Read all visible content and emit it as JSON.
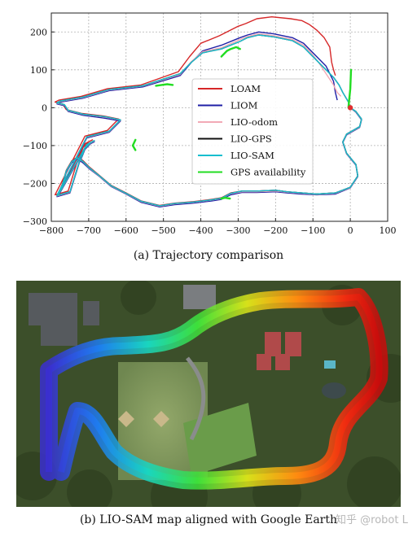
{
  "figure_a": {
    "caption": "(a) Trajectory comparison",
    "chart_data": {
      "type": "line",
      "title": "",
      "xlabel": "",
      "ylabel": "",
      "xlim": [
        -800,
        100
      ],
      "ylim": [
        -300,
        250
      ],
      "xticks": [
        -800,
        -700,
        -600,
        -500,
        -400,
        -300,
        -200,
        -100,
        0,
        100
      ],
      "yticks": [
        -300,
        -200,
        -100,
        0,
        100,
        200
      ],
      "grid": true,
      "legend_position": "center",
      "series": [
        {
          "name": "LOAM",
          "color": "#d62728",
          "x": [
            0,
            15,
            30,
            25,
            -10,
            -20,
            -10,
            15,
            20,
            0,
            -40,
            -90,
            -130,
            -170,
            -200,
            -250,
            -290,
            -320,
            -345,
            -370,
            -420,
            -470,
            -510,
            -560,
            -600,
            -640,
            -670,
            -700,
            -715,
            -730,
            -745,
            -760,
            -770,
            -780,
            -710,
            -690,
            -700,
            -715,
            -725,
            -730,
            -755,
            -790,
            -710,
            -650,
            -620,
            -660,
            -720,
            -760,
            -770,
            -790,
            -780,
            -720,
            -650,
            -560,
            -460,
            -430,
            -400,
            -350,
            -300,
            -280,
            -250,
            -210,
            -160,
            -130,
            -110,
            -90,
            -70,
            -55,
            -50,
            -45,
            -40
          ],
          "y": [
            0,
            -10,
            -30,
            -50,
            -70,
            -90,
            -120,
            -150,
            -180,
            -210,
            -225,
            -228,
            -225,
            -222,
            -218,
            -220,
            -220,
            -225,
            -238,
            -242,
            -248,
            -252,
            -258,
            -246,
            -225,
            -205,
            -180,
            -155,
            -140,
            -130,
            -140,
            -165,
            -200,
            -225,
            -95,
            -85,
            -90,
            -105,
            -130,
            -140,
            -220,
            -230,
            -75,
            -60,
            -30,
            -22,
            -15,
            -5,
            10,
            15,
            20,
            30,
            50,
            60,
            95,
            135,
            170,
            190,
            215,
            222,
            235,
            240,
            235,
            230,
            220,
            205,
            185,
            160,
            120,
            100,
            85
          ]
        },
        {
          "name": "LIOM",
          "color": "#1f1fa6",
          "x": [
            0,
            15,
            30,
            25,
            -10,
            -20,
            -10,
            15,
            20,
            0,
            -40,
            -90,
            -130,
            -170,
            -200,
            -250,
            -290,
            -320,
            -345,
            -370,
            -420,
            -470,
            -510,
            -560,
            -600,
            -640,
            -670,
            -700,
            -715,
            -730,
            -745,
            -760,
            -770,
            -780,
            -705,
            -685,
            -695,
            -710,
            -720,
            -725,
            -750,
            -785,
            -705,
            -645,
            -615,
            -655,
            -715,
            -755,
            -765,
            -785,
            -775,
            -715,
            -645,
            -555,
            -455,
            -425,
            -395,
            -345,
            -295,
            -275,
            -245,
            -205,
            -155,
            -125,
            -105,
            -85,
            -65,
            -45,
            -40,
            -35
          ],
          "y": [
            0,
            -12,
            -32,
            -52,
            -72,
            -92,
            -122,
            -152,
            -182,
            -212,
            -228,
            -230,
            -228,
            -225,
            -222,
            -224,
            -224,
            -230,
            -242,
            -246,
            -252,
            -256,
            -262,
            -250,
            -228,
            -208,
            -183,
            -160,
            -146,
            -135,
            -145,
            -170,
            -205,
            -230,
            -100,
            -90,
            -95,
            -110,
            -135,
            -145,
            -225,
            -235,
            -80,
            -65,
            -35,
            -28,
            -20,
            -10,
            5,
            10,
            15,
            25,
            45,
            55,
            85,
            120,
            150,
            165,
            185,
            192,
            200,
            195,
            185,
            170,
            150,
            130,
            110,
            70,
            40,
            20
          ]
        },
        {
          "name": "LIO-odom",
          "color": "#f2a9b6",
          "x": [
            0,
            15,
            30,
            25,
            -10,
            -20,
            -10,
            15,
            20,
            0,
            -40,
            -90,
            -130,
            -170,
            -200,
            -250,
            -290,
            -320,
            -345,
            -370,
            -420,
            -470,
            -510,
            -560,
            -600,
            -640,
            -670,
            -700,
            -715,
            -730,
            -745,
            -760,
            -770,
            -780,
            -705,
            -685,
            -695,
            -710,
            -720,
            -725,
            -750,
            -785,
            -705,
            -645,
            -615,
            -655,
            -715,
            -755,
            -765,
            -785,
            -775,
            -715,
            -645,
            -555,
            -455,
            -425,
            -395,
            -345,
            -295,
            -275,
            -245,
            -205,
            -155,
            -125,
            -105,
            -85,
            -65,
            -45,
            -35,
            -25
          ],
          "y": [
            0,
            -11,
            -31,
            -51,
            -71,
            -91,
            -121,
            -151,
            -181,
            -211,
            -226,
            -229,
            -226,
            -223,
            -220,
            -222,
            -222,
            -227,
            -240,
            -244,
            -250,
            -254,
            -260,
            -248,
            -227,
            -207,
            -182,
            -158,
            -143,
            -133,
            -143,
            -168,
            -203,
            -228,
            -98,
            -88,
            -93,
            -108,
            -133,
            -143,
            -223,
            -233,
            -78,
            -63,
            -33,
            -25,
            -18,
            -8,
            7,
            12,
            17,
            27,
            47,
            57,
            88,
            122,
            148,
            158,
            180,
            188,
            195,
            190,
            180,
            165,
            145,
            120,
            90,
            60,
            40,
            30
          ]
        },
        {
          "name": "LIO-GPS",
          "color": "#111111",
          "x": [
            0,
            15,
            30,
            25,
            -10,
            -20,
            -10,
            15,
            20,
            0,
            -40,
            -90,
            -130,
            -170,
            -200,
            -250,
            -290,
            -320,
            -345,
            -370,
            -420,
            -470,
            -510,
            -560,
            -600,
            -640,
            -670,
            -700,
            -715,
            -730,
            -745,
            -760,
            -770,
            -780,
            -705,
            -685,
            -695,
            -710,
            -720,
            -725,
            -750,
            -785,
            -705,
            -645,
            -615,
            -655,
            -715,
            -755,
            -765,
            -785,
            -775,
            -715,
            -645,
            -555,
            -455,
            -425,
            -395,
            -345,
            -295,
            -275,
            -245,
            -205,
            -155,
            -125,
            -105,
            -85,
            -65,
            -45,
            -30,
            -20,
            -5,
            0
          ],
          "y": [
            0,
            -10,
            -30,
            -50,
            -70,
            -90,
            -120,
            -150,
            -180,
            -210,
            -225,
            -228,
            -225,
            -222,
            -218,
            -220,
            -220,
            -226,
            -239,
            -243,
            -249,
            -253,
            -259,
            -247,
            -226,
            -206,
            -181,
            -157,
            -142,
            -132,
            -142,
            -167,
            -202,
            -227,
            -97,
            -87,
            -92,
            -107,
            -132,
            -142,
            -222,
            -232,
            -77,
            -62,
            -32,
            -24,
            -17,
            -7,
            8,
            13,
            18,
            28,
            48,
            58,
            90,
            120,
            145,
            155,
            175,
            185,
            192,
            187,
            177,
            160,
            140,
            120,
            100,
            80,
            60,
            40,
            15,
            0
          ]
        },
        {
          "name": "LIO-SAM",
          "color": "#17becf",
          "x": [
            0,
            15,
            30,
            25,
            -10,
            -20,
            -10,
            15,
            20,
            0,
            -40,
            -90,
            -130,
            -170,
            -200,
            -250,
            -290,
            -320,
            -345,
            -370,
            -420,
            -470,
            -510,
            -560,
            -600,
            -640,
            -670,
            -700,
            -715,
            -730,
            -745,
            -760,
            -770,
            -780,
            -705,
            -685,
            -695,
            -710,
            -720,
            -725,
            -750,
            -785,
            -705,
            -645,
            -615,
            -655,
            -715,
            -755,
            -765,
            -785,
            -775,
            -715,
            -645,
            -555,
            -455,
            -425,
            -395,
            -345,
            -295,
            -275,
            -245,
            -205,
            -155,
            -125,
            -105,
            -85,
            -65,
            -45,
            -30,
            -20,
            -5,
            0
          ],
          "y": [
            0,
            -10,
            -30,
            -50,
            -70,
            -90,
            -120,
            -150,
            -180,
            -210,
            -225,
            -228,
            -225,
            -222,
            -218,
            -220,
            -220,
            -226,
            -239,
            -243,
            -249,
            -253,
            -259,
            -247,
            -226,
            -206,
            -181,
            -157,
            -142,
            -132,
            -142,
            -167,
            -202,
            -227,
            -97,
            -87,
            -92,
            -107,
            -132,
            -142,
            -222,
            -232,
            -77,
            -62,
            -32,
            -24,
            -17,
            -7,
            8,
            13,
            18,
            28,
            48,
            58,
            90,
            120,
            145,
            155,
            175,
            185,
            192,
            187,
            177,
            160,
            140,
            120,
            100,
            80,
            60,
            40,
            15,
            0
          ]
        },
        {
          "name": "GPS availability",
          "color": "#22dd22",
          "segments": [
            {
              "x": [
                -5,
                -3,
                0,
                2
              ],
              "y": [
                0,
                20,
                50,
                100
              ]
            },
            {
              "x": [
                -345,
                -330,
                -320,
                -305,
                -295
              ],
              "y": [
                135,
                150,
                155,
                160,
                155
              ]
            },
            {
              "x": [
                -520,
                -505,
                -490,
                -475
              ],
              "y": [
                58,
                60,
                62,
                60
              ]
            },
            {
              "x": [
                -575,
                -582,
                -575
              ],
              "y": [
                -85,
                -100,
                -112
              ]
            },
            {
              "x": [
                -345,
                -335,
                -322
              ],
              "y": [
                -240,
                -238,
                -240
              ]
            }
          ],
          "x": [
            -5,
            -3,
            0,
            2,
            -345,
            -330,
            -320,
            -305,
            -295,
            -520,
            -505,
            -490,
            -475,
            -575,
            -582,
            -575,
            -345,
            -335,
            -322
          ],
          "y": [
            0,
            20,
            50,
            100,
            135,
            150,
            155,
            160,
            155,
            58,
            60,
            62,
            60,
            -85,
            -100,
            -112,
            -240,
            -238,
            -240
          ]
        }
      ],
      "start_marker": {
        "x": 0,
        "y": 0,
        "color": "#e03030"
      }
    }
  },
  "figure_b": {
    "caption": "(b) LIO-SAM map aligned with Google Earth"
  },
  "watermark": "知乎 @robot L"
}
